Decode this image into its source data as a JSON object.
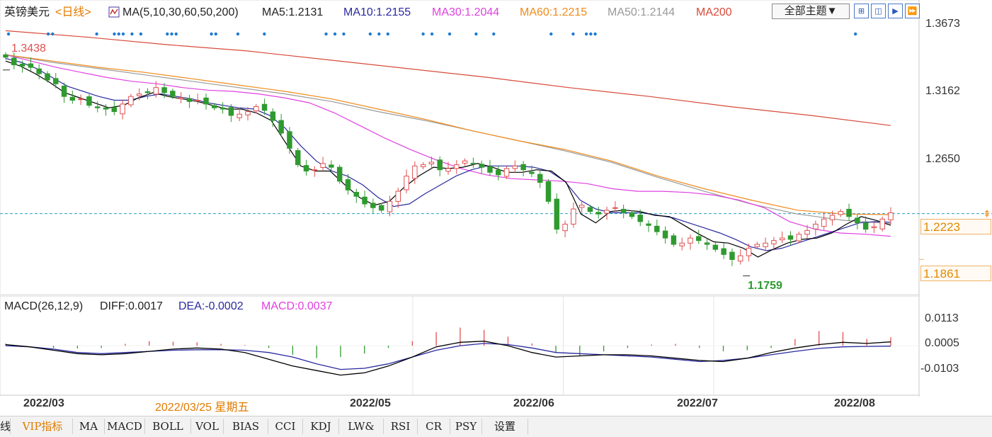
{
  "header": {
    "symbol": "英镑美元",
    "period": "<日线>",
    "ma_title": "MA(5,10,30,60,50,200)",
    "ma5": "MA5:1.2131",
    "ma10": "MA10:1.2155",
    "ma30": "MA30:1.2044",
    "ma60": "MA60:1.2215",
    "ma50": "MA50:1.2144",
    "ma200": "MA200",
    "theme_select": "全部主题▼"
  },
  "macd_header": {
    "title": "MACD(26,12,9)",
    "diff": "DIFF:0.0017",
    "dea": "DEA:-0.0002",
    "macd": "MACD:0.0037"
  },
  "price_axis": {
    "ticks": [
      "1.3673",
      "1.3162",
      "1.2650"
    ],
    "current_price": "1.2223",
    "low_box": "1.1861"
  },
  "macd_axis": {
    "ticks": [
      "0.0113",
      "0.0005",
      "-0.0103"
    ]
  },
  "annotations": {
    "high": "1.3438",
    "low": "1.1759"
  },
  "x_axis": {
    "dates": [
      "2022/03",
      "2022/05",
      "2022/06",
      "2022/07",
      "2022/08"
    ],
    "cursor_date": "2022/03/25 星期五"
  },
  "toolbar": {
    "first": "线",
    "tabs": [
      "VIP指标",
      "MA",
      "MACD",
      "BOLL",
      "VOL",
      "BIAS",
      "CCI",
      "KDJ",
      "LW&",
      "RSI",
      "CR",
      "PSY",
      "设置"
    ]
  },
  "colors": {
    "up": "#e05050",
    "down": "#2f9a2f",
    "ma5": "#000000",
    "ma10": "#2a2aa0",
    "ma30": "#e040e0",
    "ma60": "#f08a1a",
    "ma50": "#999999",
    "ma200": "#d84a3a",
    "current_line": "#2aa0c8"
  },
  "chart_data": {
    "type": "candlestick",
    "title": "英镑美元 日线",
    "ylim": [
      1.17,
      1.37
    ],
    "current_price": 1.2223,
    "period_high": 1.3438,
    "period_low": 1.1759,
    "close": [
      1.346,
      1.34,
      1.339,
      1.338,
      1.333,
      1.328,
      1.325,
      1.315,
      1.312,
      1.313,
      1.308,
      1.306,
      1.305,
      1.303,
      1.309,
      1.315,
      1.317,
      1.318,
      1.322,
      1.318,
      1.315,
      1.314,
      1.311,
      1.312,
      1.309,
      1.306,
      1.305,
      1.3,
      1.301,
      1.303,
      1.307,
      1.304,
      1.296,
      1.286,
      1.274,
      1.261,
      1.256,
      1.257,
      1.262,
      1.259,
      1.248,
      1.241,
      1.236,
      1.23,
      1.227,
      1.225,
      1.232,
      1.24,
      1.252,
      1.26,
      1.261,
      1.263,
      1.257,
      1.258,
      1.261,
      1.264,
      1.262,
      1.259,
      1.255,
      1.253,
      1.258,
      1.26,
      1.257,
      1.254,
      1.247,
      1.232,
      1.21,
      1.214,
      1.226,
      1.229,
      1.224,
      1.222,
      1.225,
      1.227,
      1.223,
      1.22,
      1.216,
      1.213,
      1.208,
      1.203,
      1.198,
      1.199,
      1.203,
      1.201,
      1.198,
      1.194,
      1.19,
      1.186,
      1.189,
      1.195,
      1.198,
      1.199,
      1.201,
      1.203,
      1.202,
      1.206,
      1.209,
      1.214,
      1.218,
      1.221,
      1.224,
      1.22,
      1.215,
      1.21,
      1.212,
      1.218,
      1.223
    ],
    "ma_lines": {
      "MA5": [
        1.343,
        1.339,
        1.333,
        1.326,
        1.318,
        1.314,
        1.31,
        1.306,
        1.308,
        1.314,
        1.318,
        1.315,
        1.313,
        1.311,
        1.308,
        1.305,
        1.305,
        1.302,
        1.296,
        1.278,
        1.26,
        1.256,
        1.256,
        1.245,
        1.235,
        1.229,
        1.232,
        1.243,
        1.252,
        1.259,
        1.258,
        1.259,
        1.262,
        1.259,
        1.255,
        1.255,
        1.257,
        1.256,
        1.247,
        1.222,
        1.215,
        1.224,
        1.225,
        1.224,
        1.221,
        1.22,
        1.213,
        1.206,
        1.2,
        1.199,
        1.195,
        1.188,
        1.194,
        1.199,
        1.202,
        1.203,
        1.207,
        1.214,
        1.22,
        1.217,
        1.2131
      ],
      "MA10": [
        1.345,
        1.342,
        1.337,
        1.33,
        1.323,
        1.319,
        1.315,
        1.312,
        1.312,
        1.315,
        1.317,
        1.315,
        1.313,
        1.31,
        1.308,
        1.306,
        1.305,
        1.3,
        1.29,
        1.276,
        1.264,
        1.256,
        1.252,
        1.245,
        1.235,
        1.228,
        1.23,
        1.238,
        1.245,
        1.252,
        1.257,
        1.26,
        1.26,
        1.26,
        1.259,
        1.256,
        1.248,
        1.233,
        1.226,
        1.223,
        1.223,
        1.223,
        1.221,
        1.219,
        1.215,
        1.211,
        1.207,
        1.202,
        1.196,
        1.193,
        1.195,
        1.199,
        1.203,
        1.207,
        1.211,
        1.215,
        1.216,
        1.2155
      ],
      "MA30": [
        1.348,
        1.343,
        1.338,
        1.334,
        1.33,
        1.327,
        1.325,
        1.322,
        1.32,
        1.319,
        1.317,
        1.314,
        1.31,
        1.302,
        1.292,
        1.282,
        1.273,
        1.265,
        1.258,
        1.253,
        1.25,
        1.249,
        1.248,
        1.246,
        1.242,
        1.24,
        1.24,
        1.239,
        1.237,
        1.233,
        1.227,
        1.216,
        1.21,
        1.207,
        1.206,
        1.2044
      ],
      "MA60": [
        1.348,
        1.343,
        1.338,
        1.334,
        1.329,
        1.324,
        1.319,
        1.313,
        1.305,
        1.297,
        1.288,
        1.28,
        1.273,
        1.264,
        1.252,
        1.242,
        1.233,
        1.225,
        1.222,
        1.2215
      ],
      "MA50": [
        1.348,
        1.342,
        1.337,
        1.332,
        1.327,
        1.322,
        1.317,
        1.311,
        1.303,
        1.296,
        1.288,
        1.28,
        1.272,
        1.263,
        1.251,
        1.24,
        1.23,
        1.222,
        1.217,
        1.2144
      ],
      "MA200": [
        1.367,
        1.362,
        1.356,
        1.351,
        1.344,
        1.337,
        1.33,
        1.322,
        1.315,
        1.307,
        1.3,
        1.292
      ]
    },
    "macd": {
      "ylim": [
        -0.0103,
        0.0113
      ],
      "diff": [
        0.0005,
        -0.0005,
        -0.002,
        -0.0035,
        -0.004,
        -0.0035,
        -0.0025,
        -0.0015,
        -0.001,
        -0.0015,
        -0.003,
        -0.006,
        -0.009,
        -0.011,
        -0.013,
        -0.012,
        -0.009,
        -0.005,
        -0.0005,
        0.0015,
        0.002,
        0.0,
        -0.003,
        -0.005,
        -0.0045,
        -0.004,
        -0.004,
        -0.0045,
        -0.0055,
        -0.0065,
        -0.007,
        -0.0055,
        -0.003,
        -0.001,
        0.0005,
        0.0015,
        0.001,
        0.0017
      ],
      "dea": [
        0.0,
        -0.0005,
        -0.0015,
        -0.003,
        -0.0035,
        -0.003,
        -0.0025,
        -0.002,
        -0.0018,
        -0.0018,
        -0.002,
        -0.003,
        -0.005,
        -0.008,
        -0.0105,
        -0.01,
        -0.008,
        -0.005,
        -0.002,
        0.0,
        0.001,
        0.0005,
        -0.001,
        -0.003,
        -0.0035,
        -0.004,
        -0.0045,
        -0.005,
        -0.006,
        -0.007,
        -0.0065,
        -0.0055,
        -0.004,
        -0.0025,
        -0.0012,
        -0.0005,
        -0.0003,
        -0.0002
      ],
      "hist": [
        0.001,
        0.0,
        -0.001,
        -0.0012,
        -0.001,
        0.0008,
        0.002,
        0.0018,
        0.0015,
        0.0008,
        0.0003,
        -0.001,
        -0.004,
        -0.0055,
        -0.005,
        -0.0035,
        -0.001,
        0.002,
        0.006,
        0.008,
        0.007,
        0.004,
        0.001,
        -0.003,
        -0.0045,
        -0.0025,
        -0.001,
        0.0005,
        0.0008,
        -0.001,
        -0.0025,
        -0.002,
        -0.001,
        0.003,
        0.0065,
        0.006,
        0.003,
        0.0037
      ]
    }
  }
}
